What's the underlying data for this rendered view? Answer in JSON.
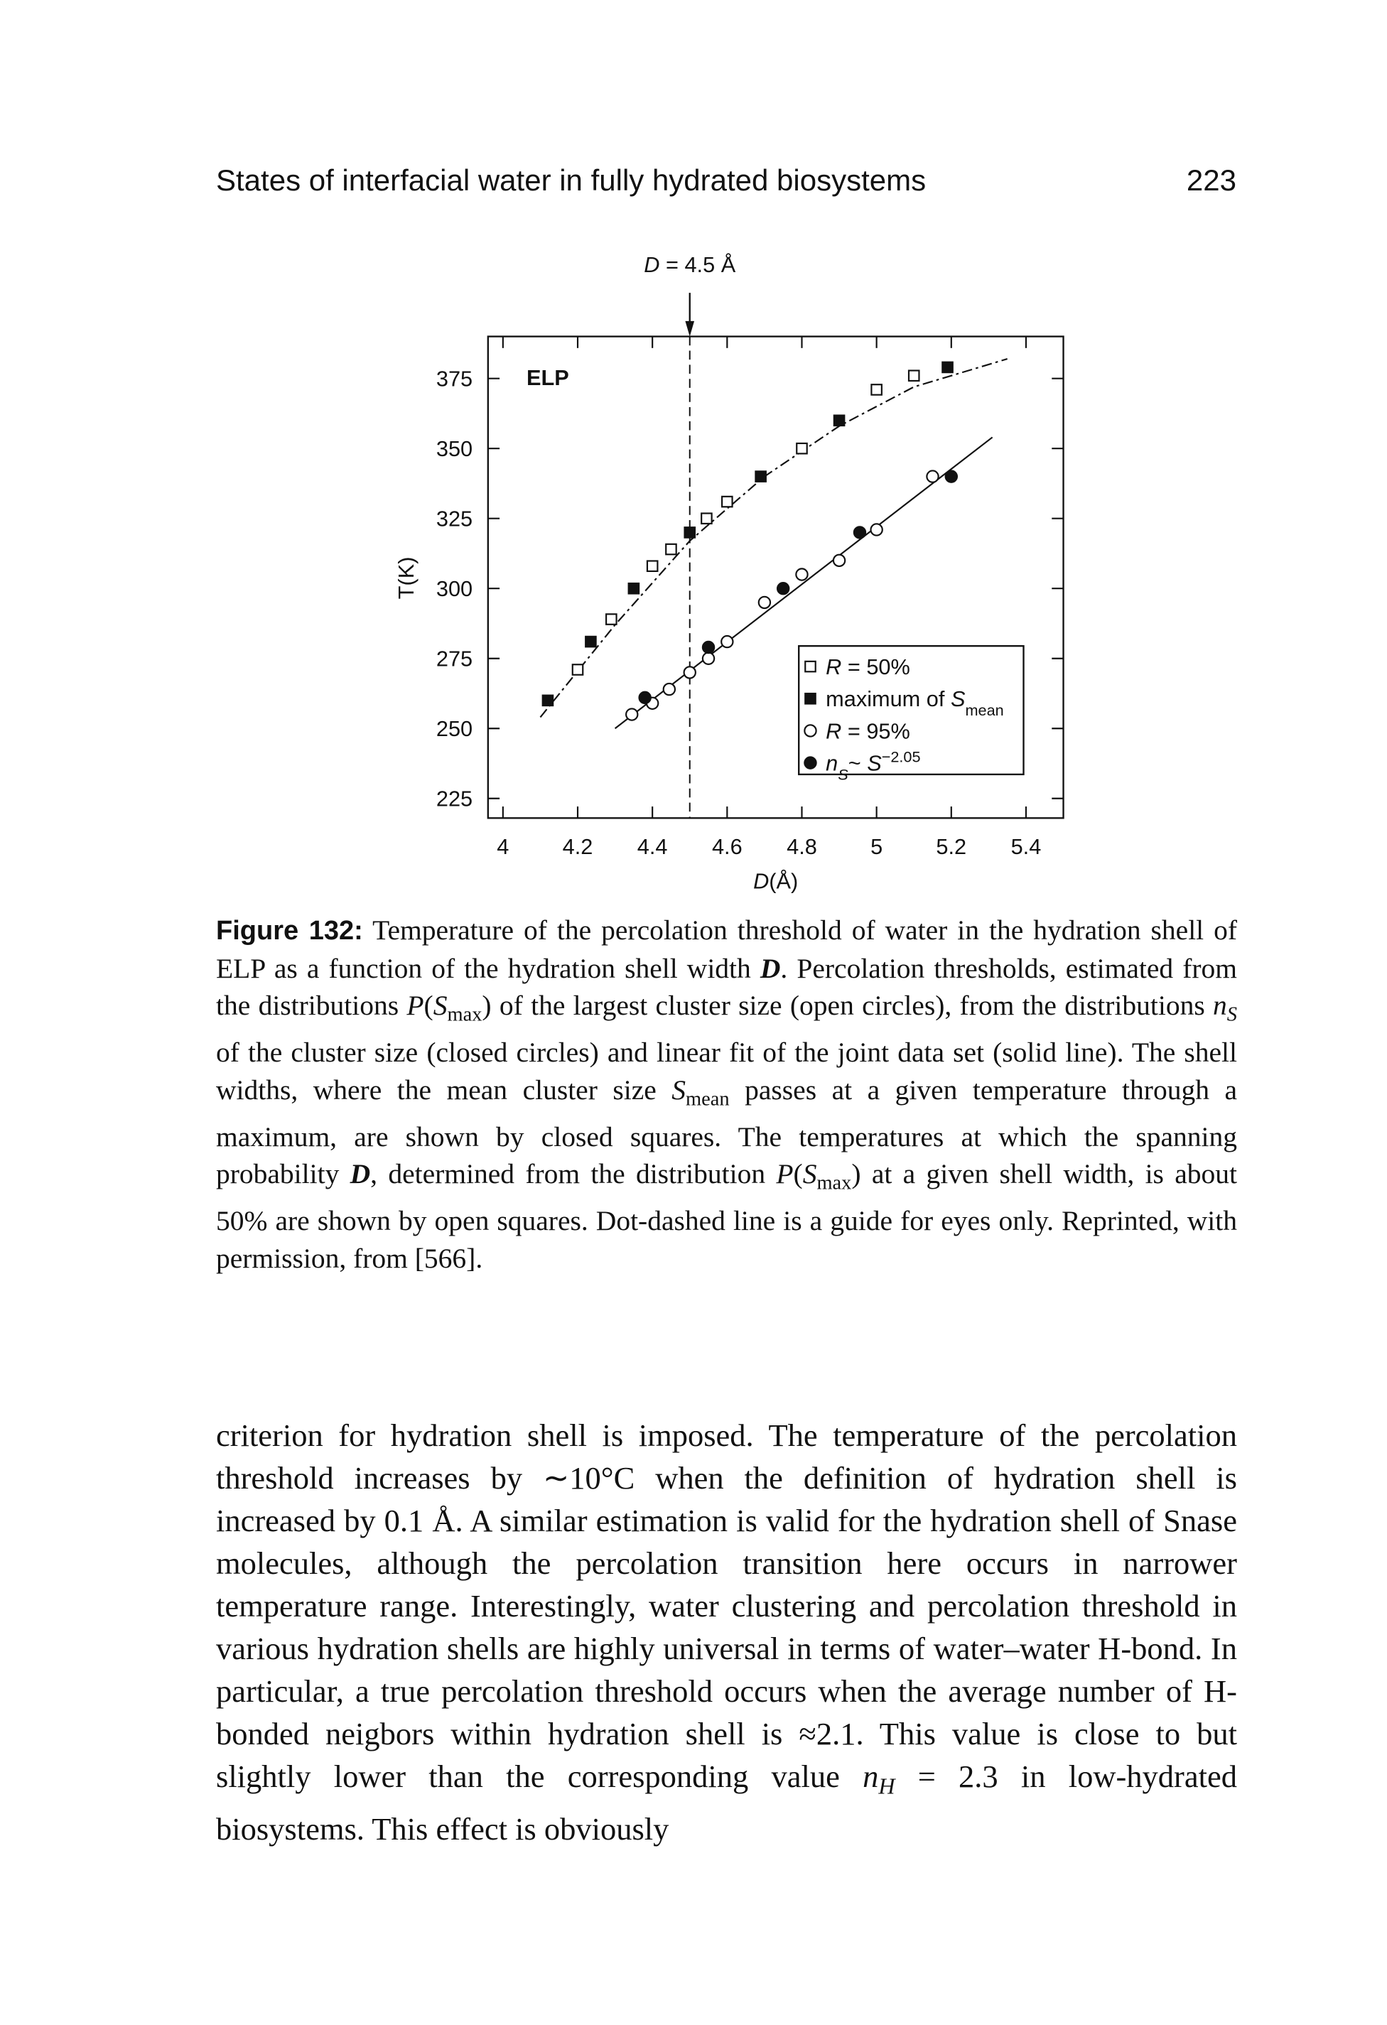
{
  "header": {
    "title": "States of interfacial water in fully hydrated biosystems",
    "page_number": "223"
  },
  "chart_data": {
    "type": "scatter",
    "annotation": [
      {
        "text": "D",
        "style": "i"
      },
      " = 4.5 Å"
    ],
    "annotation_x": 4.5,
    "inset_label": "ELP",
    "xlabel": [
      {
        "text": "D",
        "style": "i"
      },
      "(Å)"
    ],
    "ylabel": "T(K)",
    "xlim": [
      3.96,
      5.5
    ],
    "ylim": [
      218,
      390
    ],
    "xticks": [
      4,
      4.2,
      4.4,
      4.6,
      4.8,
      5,
      5.2,
      5.4
    ],
    "yticks": [
      225,
      250,
      275,
      300,
      325,
      350,
      375
    ],
    "legend": "lower-right",
    "series": [
      {
        "name": [
          {
            "text": "R",
            "style": "i"
          },
          " = 50%"
        ],
        "marker": "square",
        "filled": false,
        "color": "#111",
        "x": [
          4.2,
          4.29,
          4.4,
          4.45,
          4.545,
          4.6,
          4.8,
          5.0,
          5.1
        ],
        "values": [
          271,
          289,
          308,
          314,
          325,
          331,
          350,
          371,
          376
        ]
      },
      {
        "name": [
          "maximum of ",
          {
            "text": "S",
            "style": "i"
          },
          {
            "text": "mean",
            "style": "sub"
          }
        ],
        "marker": "square",
        "filled": true,
        "color": "#111",
        "x": [
          4.12,
          4.235,
          4.35,
          4.5,
          4.69,
          4.9,
          5.19
        ],
        "values": [
          260,
          281,
          300,
          320,
          340,
          360,
          379
        ]
      },
      {
        "name": [
          {
            "text": "R",
            "style": "i"
          },
          " = 95%"
        ],
        "marker": "circle",
        "filled": false,
        "color": "#111",
        "x": [
          4.345,
          4.4,
          4.445,
          4.5,
          4.55,
          4.6,
          4.7,
          4.8,
          4.9,
          5.0,
          5.15
        ],
        "values": [
          255,
          259,
          264,
          270,
          275,
          281,
          295,
          305,
          310,
          321,
          340
        ]
      },
      {
        "name": [
          {
            "text": "n",
            "style": "i"
          },
          {
            "text": "S",
            "style": "sub i"
          },
          "~ ",
          {
            "text": "S",
            "style": "i"
          },
          {
            "text": "−2.05",
            "style": "sup"
          }
        ],
        "marker": "circle",
        "filled": true,
        "color": "#111",
        "x": [
          4.38,
          4.55,
          4.75,
          4.955,
          5.2
        ],
        "values": [
          261,
          279,
          300,
          320,
          340
        ]
      }
    ],
    "lines": [
      {
        "style": "solid",
        "x": [
          4.3,
          5.31
        ],
        "y": [
          250,
          354
        ]
      },
      {
        "style": "dot-dash",
        "x": [
          4.1,
          4.3,
          4.5,
          4.7,
          4.9,
          5.1,
          5.35
        ],
        "y": [
          254,
          287,
          317,
          340,
          358,
          372,
          382
        ]
      }
    ]
  },
  "caption": {
    "label": "Figure 132:",
    "text": [
      " Temperature of the percolation threshold of water in the hydration shell of ELP as a function of the hydration shell width ",
      {
        "text": "D",
        "style": "bi"
      },
      ". Percolation thresholds, estimated from the distributions ",
      {
        "text": "P",
        "style": "i"
      },
      "(",
      {
        "text": "S",
        "style": "i"
      },
      {
        "text": "max",
        "style": "sub"
      },
      ") of the largest cluster size (open circles), from the distributions ",
      {
        "text": "n",
        "style": "i"
      },
      {
        "text": "S",
        "style": "sub i"
      },
      " of the cluster size (closed circles) and linear fit of the joint data set (solid line). The shell widths, where the mean cluster size ",
      {
        "text": "S",
        "style": "i"
      },
      {
        "text": "mean",
        "style": "sub"
      },
      " passes at a given temperature through a maximum, are shown by closed squares. The temperatures at which the spanning probability ",
      {
        "text": "D",
        "style": "bi"
      },
      ", determined from the distribution ",
      {
        "text": "P",
        "style": "i"
      },
      "(",
      {
        "text": "S",
        "style": "i"
      },
      {
        "text": "max",
        "style": "sub"
      },
      ") at a given shell width, is about 50% are shown by open squares. Dot-dashed line is a guide for eyes only. Reprinted, with permission, from [566]."
    ]
  },
  "body": {
    "text": [
      "criterion for hydration shell is imposed. The temperature of the percolation threshold increases by ∼10°C when the definition of hydration shell is increased by 0.1 Å. A similar estimation is valid for the hydration shell of Snase molecules, although the percolation transition here occurs in narrower temperature range. Interestingly, water clustering and percolation threshold in various hydration shells are highly universal in terms of water–water H-bond. In particular, a true percolation threshold occurs when the average number of H-bonded neigbors within hydration shell is ≈2.1. This value is close to but slightly lower than the corresponding value ",
      {
        "text": "n",
        "style": "i"
      },
      {
        "text": "H",
        "style": "sub i"
      },
      " = 2.3 in low-hydrated biosystems. This effect is obviously"
    ]
  }
}
